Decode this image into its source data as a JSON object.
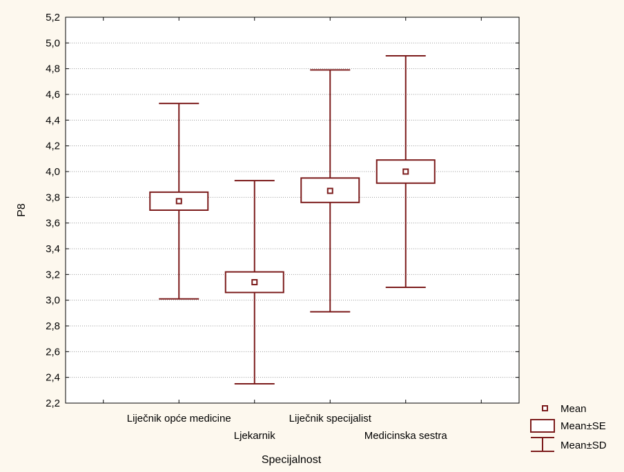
{
  "chart_data": {
    "type": "boxplot",
    "xlabel": "Specijalnost",
    "ylabel": "P8",
    "ylim": [
      2.2,
      5.2
    ],
    "y_ticks": [
      "2,2",
      "2,4",
      "2,6",
      "2,8",
      "3,0",
      "3,2",
      "3,4",
      "3,6",
      "3,8",
      "4,0",
      "4,2",
      "4,4",
      "4,6",
      "4,8",
      "5,0",
      "5,2"
    ],
    "y_tick_values": [
      2.2,
      2.4,
      2.6,
      2.8,
      3.0,
      3.2,
      3.4,
      3.6,
      3.8,
      4.0,
      4.2,
      4.4,
      4.6,
      4.8,
      5.0,
      5.2
    ],
    "grid": "horizontal dotted",
    "categories": [
      "Liječnik opće medicine",
      "Ljekarnik",
      "Liječnik specijalist",
      "Medicinska sestra"
    ],
    "groups": [
      {
        "name": "Liječnik opće medicine",
        "mean": 3.77,
        "se_low": 3.7,
        "se_high": 3.84,
        "sd_low": 3.01,
        "sd_high": 4.53
      },
      {
        "name": "Ljekarnik",
        "mean": 3.14,
        "se_low": 3.06,
        "se_high": 3.22,
        "sd_low": 2.35,
        "sd_high": 3.93
      },
      {
        "name": "Liječnik specijalist",
        "mean": 3.85,
        "se_low": 3.76,
        "se_high": 3.95,
        "sd_low": 2.91,
        "sd_high": 4.79
      },
      {
        "name": "Medicinska sestra",
        "mean": 4.0,
        "se_low": 3.91,
        "se_high": 4.09,
        "sd_low": 3.1,
        "sd_high": 4.9
      }
    ],
    "legend": {
      "position": "bottom-right",
      "items": [
        "Mean",
        "Mean±SE",
        "Mean±SD"
      ]
    },
    "color": "#7b1a1a"
  }
}
